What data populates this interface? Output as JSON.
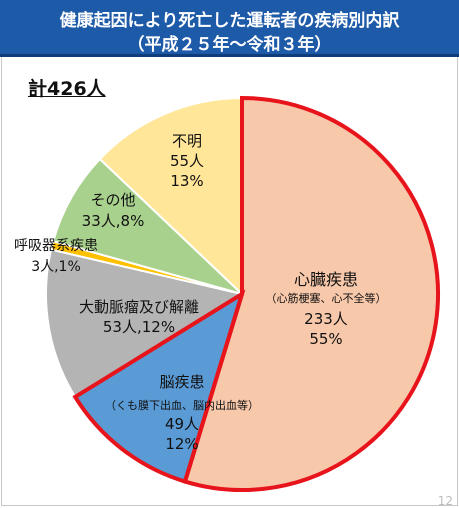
{
  "chart_data": {
    "type": "pie",
    "title": "健康起因により死亡した運転者の疾病別内訳",
    "subtitle": "（平成２５年～令和３年）",
    "total_label": "計426人",
    "total": 426,
    "start": "12 o'clock",
    "direction": "clockwise",
    "slices": [
      {
        "name": "心臓疾患",
        "note": "（心筋梗塞、心不全等）",
        "count_label": "233人",
        "pct_label": "55%",
        "value": 233,
        "color": "#f8c8ab",
        "highlight": true
      },
      {
        "name": "脳疾患",
        "note": "（くも膜下出血、脳内出血等）",
        "count_label": "49人",
        "pct_label": "12%",
        "value": 49,
        "color": "#5b9bd5",
        "highlight": true
      },
      {
        "name": "大動脈瘤及び解離",
        "note": "",
        "count_label": "53人,12%",
        "pct_label": "",
        "value": 53,
        "color": "#b4b4b4",
        "highlight": false
      },
      {
        "name": "呼吸器系疾患",
        "note": "",
        "count_label": "3人,1%",
        "pct_label": "",
        "value": 3,
        "color": "#ffc000",
        "highlight": false
      },
      {
        "name": "その他",
        "note": "",
        "count_label": "33人,8%",
        "pct_label": "",
        "value": 33,
        "color": "#a9d18e",
        "highlight": false
      },
      {
        "name": "不明",
        "note": "",
        "count_label": "55人",
        "pct_label": "13%",
        "value": 55,
        "color": "#ffe699",
        "highlight": false
      }
    ],
    "highlight_color": "#e8141c"
  },
  "page_number": "12"
}
